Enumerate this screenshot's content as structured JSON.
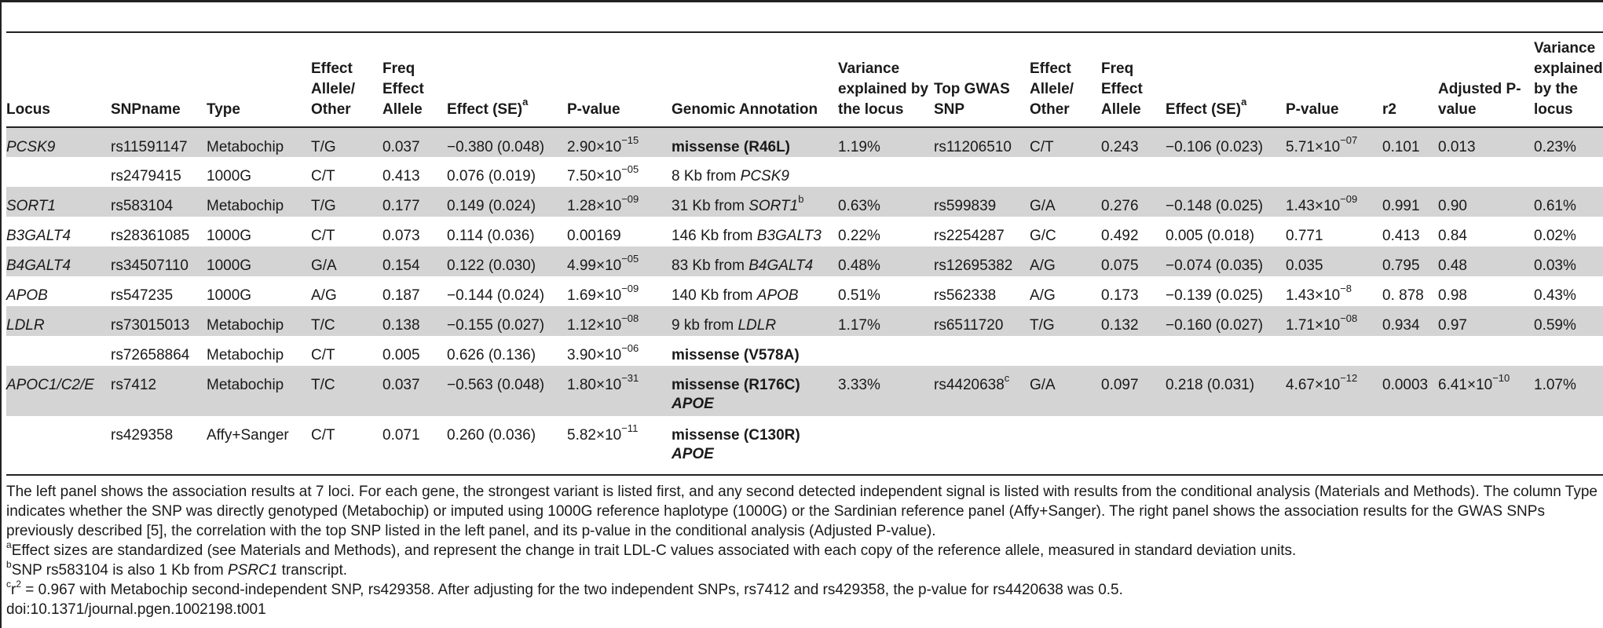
{
  "headers": [
    "Locus",
    "SNPname",
    "Type",
    "Effect Allele/ Other",
    "Freq Effect Allele",
    "Effect (SE)",
    "P-value",
    "Genomic Annotation",
    "Variance explained by the locus",
    "Top GWAS SNP",
    "Effect Allele/ Other",
    "Freq Effect Allele",
    "Effect (SE)",
    "P-value",
    "r2",
    "Adjusted P-value",
    "Variance explained by the locus"
  ],
  "header_sup": {
    "effect_left": "a",
    "effect_right": "a"
  },
  "rows": [
    {
      "locus": "PCSK9",
      "snp": "rs11591147",
      "type": "Metabochip",
      "allele": "T/G",
      "freq": "0.037",
      "effect": "−0.380 (0.048)",
      "p_base": "2.90×10",
      "p_exp": "−15",
      "annot": "missense (R46L)",
      "var": "1.19%",
      "gwas": "rs11206510",
      "gwas_sup": "",
      "g_allele": "C/T",
      "g_freq": "0.243",
      "g_effect": "−0.106 (0.023)",
      "g_p_base": "5.71×10",
      "g_p_exp": "−07",
      "r2": "0.101",
      "adj_p_base": "0.013",
      "adj_p_exp": "",
      "g_var": "0.23%"
    },
    {
      "locus": "",
      "snp": "rs2479415",
      "type": "1000G",
      "allele": "C/T",
      "freq": "0.413",
      "effect": "0.076 (0.019)",
      "p_base": "7.50×10",
      "p_exp": "−05",
      "annot_pre": "8 Kb from ",
      "annot_gene": "PCSK9",
      "var": "",
      "gwas": "",
      "gwas_sup": "",
      "g_allele": "",
      "g_freq": "",
      "g_effect": "",
      "g_p_base": "",
      "g_p_exp": "",
      "r2": "",
      "adj_p_base": "",
      "adj_p_exp": "",
      "g_var": ""
    },
    {
      "locus": "SORT1",
      "snp": "rs583104",
      "type": "Metabochip",
      "allele": "T/G",
      "freq": "0.177",
      "effect": "0.149 (0.024)",
      "p_base": "1.28×10",
      "p_exp": "−09",
      "annot_pre": "31 Kb from ",
      "annot_gene": "SORT1",
      "annot_sup": "b",
      "var": "0.63%",
      "gwas": "rs599839",
      "gwas_sup": "",
      "g_allele": "G/A",
      "g_freq": "0.276",
      "g_effect": "−0.148 (0.025)",
      "g_p_base": "1.43×10",
      "g_p_exp": "−09",
      "r2": "0.991",
      "adj_p_base": "0.90",
      "adj_p_exp": "",
      "g_var": "0.61%"
    },
    {
      "locus": "B3GALT4",
      "snp": "rs28361085",
      "type": "1000G",
      "allele": "C/T",
      "freq": "0.073",
      "effect": "0.114 (0.036)",
      "p_base": "0.00169",
      "p_exp": "",
      "annot_pre": "146 Kb from ",
      "annot_gene": "B3GALT3",
      "var": "0.22%",
      "gwas": "rs2254287",
      "gwas_sup": "",
      "g_allele": "G/C",
      "g_freq": "0.492",
      "g_effect": "0.005 (0.018)",
      "g_p_base": "0.771",
      "g_p_exp": "",
      "r2": "0.413",
      "adj_p_base": "0.84",
      "adj_p_exp": "",
      "g_var": "0.02%"
    },
    {
      "locus": "B4GALT4",
      "snp": "rs34507110",
      "type": "1000G",
      "allele": "G/A",
      "freq": "0.154",
      "effect": "0.122 (0.030)",
      "p_base": "4.99×10",
      "p_exp": "−05",
      "annot_pre": "83 Kb from ",
      "annot_gene": "B4GALT4",
      "var": "0.48%",
      "gwas": "rs12695382",
      "gwas_sup": "",
      "g_allele": "A/G",
      "g_freq": "0.075",
      "g_effect": "−0.074 (0.035)",
      "g_p_base": "0.035",
      "g_p_exp": "",
      "r2": "0.795",
      "adj_p_base": "0.48",
      "adj_p_exp": "",
      "g_var": "0.03%"
    },
    {
      "locus": "APOB",
      "snp": "rs547235",
      "type": "1000G",
      "allele": "A/G",
      "freq": "0.187",
      "effect": "−0.144 (0.024)",
      "p_base": "1.69×10",
      "p_exp": "−09",
      "annot_pre": "140 Kb from ",
      "annot_gene": "APOB",
      "var": "0.51%",
      "gwas": "rs562338",
      "gwas_sup": "",
      "g_allele": "A/G",
      "g_freq": "0.173",
      "g_effect": "−0.139 (0.025)",
      "g_p_base": "1.43×10",
      "g_p_exp": "−8",
      "r2": "0. 878",
      "adj_p_base": "0.98",
      "adj_p_exp": "",
      "g_var": "0.43%"
    },
    {
      "locus": "LDLR",
      "snp": "rs73015013",
      "type": "Metabochip",
      "allele": "T/C",
      "freq": "0.138",
      "effect": "−0.155 (0.027)",
      "p_base": "1.12×10",
      "p_exp": "−08",
      "annot_pre": "9 kb from ",
      "annot_gene": "LDLR",
      "var": "1.17%",
      "gwas": "rs6511720",
      "gwas_sup": "",
      "g_allele": "T/G",
      "g_freq": "0.132",
      "g_effect": "−0.160 (0.027)",
      "g_p_base": "1.71×10",
      "g_p_exp": "−08",
      "r2": "0.934",
      "adj_p_base": "0.97",
      "adj_p_exp": "",
      "g_var": "0.59%"
    },
    {
      "locus": "",
      "snp": "rs72658864",
      "type": "Metabochip",
      "allele": "C/T",
      "freq": "0.005",
      "effect": "0.626 (0.136)",
      "p_base": "3.90×10",
      "p_exp": "−06",
      "annot": "missense (V578A)",
      "var": "",
      "gwas": "",
      "gwas_sup": "",
      "g_allele": "",
      "g_freq": "",
      "g_effect": "",
      "g_p_base": "",
      "g_p_exp": "",
      "r2": "",
      "adj_p_base": "",
      "adj_p_exp": "",
      "g_var": ""
    },
    {
      "locus": "APOC1/C2/E",
      "snp": "rs7412",
      "type": "Metabochip",
      "allele": "T/C",
      "freq": "0.037",
      "effect": "−0.563 (0.048)",
      "p_base": "1.80×10",
      "p_exp": "−31",
      "annot": "missense (R176C)",
      "annot2": "APOE",
      "var": "3.33%",
      "gwas": "rs4420638",
      "gwas_sup": "c",
      "g_allele": "G/A",
      "g_freq": "0.097",
      "g_effect": "0.218 (0.031)",
      "g_p_base": "4.67×10",
      "g_p_exp": "−12",
      "r2": "0.0003",
      "adj_p_base": "6.41×10",
      "adj_p_exp": "−10",
      "g_var": "1.07%"
    },
    {
      "locus": "",
      "snp": "rs429358",
      "type": "Affy+Sanger",
      "allele": "C/T",
      "freq": "0.071",
      "effect": "0.260 (0.036)",
      "p_base": "5.82×10",
      "p_exp": "−11",
      "annot": "missense (C130R)",
      "annot2": "APOE",
      "var": "",
      "gwas": "",
      "gwas_sup": "",
      "g_allele": "",
      "g_freq": "",
      "g_effect": "",
      "g_p_base": "",
      "g_p_exp": "",
      "r2": "",
      "adj_p_base": "",
      "adj_p_exp": "",
      "g_var": ""
    }
  ],
  "notes": {
    "main": "The left panel shows the association results at 7 loci. For each gene, the strongest variant is listed first, and any second detected independent signal is listed with results from the conditional analysis (Materials and Methods). The column Type indicates whether the SNP was directly genotyped (Metabochip) or imputed using 1000G reference haplotype (1000G) or the Sardinian reference panel (Affy+Sanger). The right panel shows the association results for the GWAS SNPs previously described [5], the correlation with the top SNP listed in the left panel, and its p-value in the conditional analysis (Adjusted P-value).",
    "a_mark": "a",
    "a_text": "Effect sizes are standardized (see Materials and Methods), and represent the change in trait LDL-C values associated with each copy of the reference allele, measured in standard deviation units.",
    "b_mark": "b",
    "b_text_pre": "SNP rs583104 is also 1 Kb from ",
    "b_gene": "PSRC1",
    "b_text_post": " transcript.",
    "c_mark": "c",
    "c_r": "r",
    "c_r_sup": "2",
    "c_text": " = 0.967 with Metabochip second-independent SNP, rs429358. After adjusting for the two independent SNPs, rs7412 and rs429358, the p-value for rs4420638 was 0.5.",
    "doi": "doi:10.1371/journal.pgen.1002198.t001"
  }
}
